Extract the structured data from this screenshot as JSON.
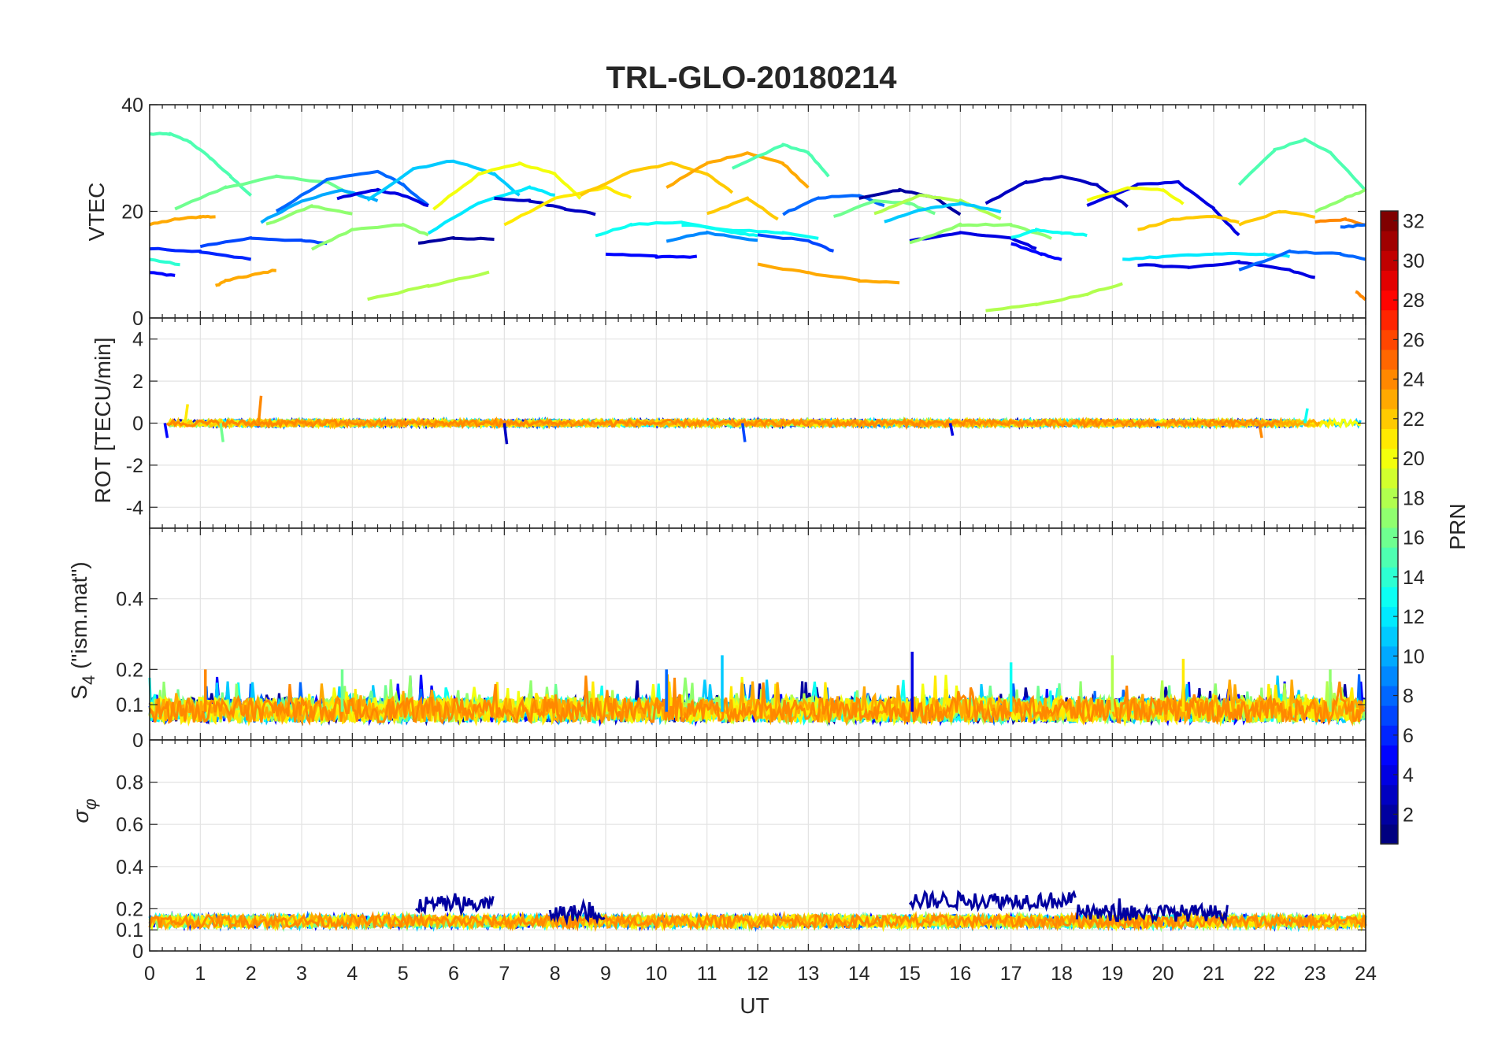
{
  "chart_data": {
    "type": "line",
    "title": "TRL-GLO-20180214",
    "xlabel": "UT",
    "xlim": [
      0,
      24
    ],
    "x_ticks": [
      0,
      1,
      2,
      3,
      4,
      5,
      6,
      7,
      8,
      9,
      10,
      11,
      12,
      13,
      14,
      15,
      16,
      17,
      18,
      19,
      20,
      21,
      22,
      23,
      24
    ],
    "grid": true,
    "panels": [
      {
        "id": "vtec",
        "ylabel": "VTEC",
        "ylim": [
          0,
          40
        ],
        "y_ticks": [
          0,
          20,
          40
        ],
        "y_tick_labels": [
          "0",
          "20",
          "40"
        ],
        "tracks": [
          {
            "prn": 15,
            "x": [
              0.0,
              0.4,
              0.8,
              1.2,
              1.6,
              2.0
            ],
            "y": [
              34.5,
              34.5,
              33.0,
              30.0,
              26.5,
              23.0
            ]
          },
          {
            "prn": 23,
            "x": [
              0.0,
              0.5,
              1.0,
              1.3
            ],
            "y": [
              17.5,
              18.5,
              19.0,
              19.0
            ]
          },
          {
            "prn": 6,
            "x": [
              0.0,
              1.0,
              2.0
            ],
            "y": [
              13.0,
              12.5,
              11.0
            ]
          },
          {
            "prn": 5,
            "x": [
              0.0,
              0.5
            ],
            "y": [
              8.5,
              8.0
            ]
          },
          {
            "prn": 14,
            "x": [
              0.0,
              0.6
            ],
            "y": [
              11.0,
              10.0
            ]
          },
          {
            "prn": 23,
            "x": [
              1.3,
              1.5,
              2.0,
              2.5
            ],
            "y": [
              6.0,
              7.0,
              8.0,
              9.0
            ]
          },
          {
            "prn": 16,
            "x": [
              0.5,
              1.5,
              2.5,
              3.5,
              4.0
            ],
            "y": [
              20.5,
              24.5,
              26.5,
              25.5,
              23.0
            ]
          },
          {
            "prn": 7,
            "x": [
              1.0,
              2.0,
              3.0,
              3.5
            ],
            "y": [
              13.5,
              15.0,
              14.5,
              14.0
            ]
          },
          {
            "prn": 10,
            "x": [
              2.2,
              3.0,
              3.8,
              4.5
            ],
            "y": [
              18.0,
              22.0,
              24.0,
              22.0
            ]
          },
          {
            "prn": 17,
            "x": [
              2.3,
              3.2,
              4.0
            ],
            "y": [
              17.5,
              21.0,
              19.5
            ]
          },
          {
            "prn": 8,
            "x": [
              2.5,
              3.5,
              4.5,
              5.0,
              5.5
            ],
            "y": [
              20.0,
              26.0,
              27.5,
              25.0,
              21.0
            ]
          },
          {
            "prn": 17,
            "x": [
              3.2,
              4.0,
              5.0,
              5.5
            ],
            "y": [
              13.0,
              16.5,
              17.5,
              15.5
            ]
          },
          {
            "prn": 4,
            "x": [
              3.7,
              4.5,
              5.0,
              5.5
            ],
            "y": [
              22.5,
              24.0,
              23.0,
              21.0
            ]
          },
          {
            "prn": 11,
            "x": [
              4.3,
              5.2,
              6.0,
              6.8,
              7.3
            ],
            "y": [
              22.0,
              28.0,
              29.5,
              27.0,
              23.0
            ]
          },
          {
            "prn": 18,
            "x": [
              4.3,
              5.5,
              6.7
            ],
            "y": [
              3.5,
              6.0,
              8.5
            ]
          },
          {
            "prn": 2,
            "x": [
              5.3,
              6.0,
              6.8
            ],
            "y": [
              14.0,
              15.0,
              14.8
            ]
          },
          {
            "prn": 12,
            "x": [
              5.5,
              6.5,
              7.5,
              8.0
            ],
            "y": [
              16.0,
              21.5,
              24.5,
              23.0
            ]
          },
          {
            "prn": 20,
            "x": [
              5.6,
              6.5,
              7.3,
              8.0,
              8.5
            ],
            "y": [
              20.5,
              27.0,
              29.0,
              27.0,
              22.5
            ]
          },
          {
            "prn": 3,
            "x": [
              6.8,
              7.5,
              8.2,
              8.8
            ],
            "y": [
              22.5,
              22.0,
              20.5,
              19.5
            ]
          },
          {
            "prn": 21,
            "x": [
              7.0,
              8.0,
              9.0,
              9.5
            ],
            "y": [
              17.5,
              22.5,
              24.5,
              22.5
            ]
          },
          {
            "prn": 22,
            "x": [
              8.5,
              9.5,
              10.3,
              11.0,
              11.5
            ],
            "y": [
              23.0,
              27.5,
              29.0,
              27.0,
              23.5
            ]
          },
          {
            "prn": 5,
            "x": [
              9.0,
              10.0,
              10.8
            ],
            "y": [
              12.0,
              11.5,
              11.5
            ]
          },
          {
            "prn": 13,
            "x": [
              8.8,
              9.5,
              10.5,
              11.5,
              12.0
            ],
            "y": [
              15.5,
              17.5,
              18.0,
              16.0,
              15.5
            ]
          },
          {
            "prn": 23,
            "x": [
              10.2,
              11.0,
              11.8,
              12.5,
              13.0
            ],
            "y": [
              24.5,
              29.0,
              31.0,
              29.0,
              24.5
            ]
          },
          {
            "prn": 9,
            "x": [
              10.2,
              11.0,
              12.0
            ],
            "y": [
              14.5,
              16.0,
              14.5
            ]
          },
          {
            "prn": 22,
            "x": [
              11.0,
              11.8,
              12.4
            ],
            "y": [
              19.5,
              22.5,
              18.5
            ]
          },
          {
            "prn": 15,
            "x": [
              11.5,
              12.5,
              13.0,
              13.4
            ],
            "y": [
              28.0,
              32.5,
              31.0,
              26.5
            ]
          },
          {
            "prn": 13,
            "x": [
              10.5,
              11.5,
              12.5,
              13.2
            ],
            "y": [
              17.5,
              16.5,
              16.0,
              15.0
            ]
          },
          {
            "prn": 23,
            "x": [
              12.0,
              13.0,
              14.0,
              14.8
            ],
            "y": [
              10.0,
              8.5,
              7.0,
              6.5
            ]
          },
          {
            "prn": 8,
            "x": [
              12.5,
              13.2,
              14.0,
              14.5
            ],
            "y": [
              19.5,
              22.5,
              23.0,
              21.0
            ]
          },
          {
            "prn": 7,
            "x": [
              12.0,
              13.0,
              13.5
            ],
            "y": [
              15.5,
              14.5,
              12.5
            ]
          },
          {
            "prn": 16,
            "x": [
              13.5,
              14.3,
              15.0,
              15.5
            ],
            "y": [
              19.0,
              22.0,
              21.5,
              19.5
            ]
          },
          {
            "prn": 2,
            "x": [
              14.0,
              14.8,
              15.5,
              16.0
            ],
            "y": [
              22.5,
              24.0,
              22.5,
              19.5
            ]
          },
          {
            "prn": 18,
            "x": [
              14.3,
              15.2,
              16.0,
              16.8
            ],
            "y": [
              19.5,
              23.0,
              22.0,
              18.5
            ]
          },
          {
            "prn": 11,
            "x": [
              14.5,
              15.3,
              16.0,
              16.8
            ],
            "y": [
              18.0,
              20.5,
              21.5,
              20.0
            ]
          },
          {
            "prn": 4,
            "x": [
              15.0,
              16.0,
              17.0,
              17.5
            ],
            "y": [
              14.5,
              16.0,
              15.0,
              13.0
            ]
          },
          {
            "prn": 17,
            "x": [
              15.0,
              16.0,
              17.0,
              17.8
            ],
            "y": [
              14.0,
              17.5,
              17.5,
              15.0
            ]
          },
          {
            "prn": 3,
            "x": [
              16.5,
              17.3,
              18.0,
              18.7,
              19.3
            ],
            "y": [
              21.5,
              25.5,
              26.5,
              25.0,
              21.0
            ]
          },
          {
            "prn": 18,
            "x": [
              16.5,
              17.5,
              18.5,
              19.2
            ],
            "y": [
              1.5,
              2.5,
              4.5,
              6.5
            ]
          },
          {
            "prn": 13,
            "x": [
              17.0,
              17.5,
              18.0,
              18.5
            ],
            "y": [
              15.0,
              16.5,
              16.0,
              15.5
            ]
          },
          {
            "prn": 5,
            "x": [
              17.0,
              17.6,
              18.0
            ],
            "y": [
              14.0,
              12.0,
              11.0
            ]
          },
          {
            "prn": 4,
            "x": [
              18.5,
              19.5,
              20.3,
              21.0,
              21.5
            ],
            "y": [
              21.0,
              25.0,
              25.5,
              20.5,
              15.5
            ]
          },
          {
            "prn": 20,
            "x": [
              18.5,
              19.3,
              20.0,
              20.4
            ],
            "y": [
              22.0,
              24.5,
              24.0,
              21.5
            ]
          },
          {
            "prn": 22,
            "x": [
              19.5,
              20.2,
              21.0,
              21.5
            ],
            "y": [
              16.5,
              18.5,
              19.0,
              18.0
            ]
          },
          {
            "prn": 12,
            "x": [
              19.2,
              20.0,
              21.0,
              22.0,
              22.5
            ],
            "y": [
              11.0,
              11.5,
              12.0,
              12.0,
              11.5
            ]
          },
          {
            "prn": 4,
            "x": [
              19.5,
              20.5,
              21.5,
              22.5,
              23.0
            ],
            "y": [
              10.0,
              9.5,
              10.5,
              9.0,
              7.5
            ]
          },
          {
            "prn": 8,
            "x": [
              21.5,
              22.5,
              23.5,
              24.0
            ],
            "y": [
              9.0,
              12.5,
              12.0,
              11.0
            ]
          },
          {
            "prn": 15,
            "x": [
              21.5,
              22.2,
              22.8,
              23.3,
              24.0
            ],
            "y": [
              25.0,
              31.5,
              33.5,
              31.0,
              24.0
            ]
          },
          {
            "prn": 22,
            "x": [
              21.5,
              22.3,
              23.0
            ],
            "y": [
              17.5,
              20.0,
              19.0
            ]
          },
          {
            "prn": 24,
            "x": [
              23.0,
              23.6,
              24.0
            ],
            "y": [
              18.0,
              18.5,
              17.5
            ]
          },
          {
            "prn": 8,
            "x": [
              23.5,
              24.0
            ],
            "y": [
              17.0,
              17.5
            ]
          },
          {
            "prn": 17,
            "x": [
              23.0,
              23.6,
              24.0
            ],
            "y": [
              20.0,
              22.5,
              24.0
            ]
          },
          {
            "prn": 24,
            "x": [
              23.8,
              24.0
            ],
            "y": [
              5.0,
              3.5
            ]
          }
        ]
      },
      {
        "id": "rot",
        "ylabel": "ROT [TECU/min]",
        "ylim": [
          -5,
          5
        ],
        "y_ticks": [
          -4,
          -2,
          0,
          2,
          4
        ],
        "y_tick_labels": [
          "-4",
          "-2",
          "0",
          "2",
          "4"
        ],
        "baseline": 0,
        "noise_level": 0.15,
        "spikes": [
          {
            "prn": 21,
            "x": 0.7,
            "y": 0.9
          },
          {
            "prn": 24,
            "x": 2.15,
            "y": 1.3
          },
          {
            "prn": 16,
            "x": 1.4,
            "y": -0.9
          },
          {
            "prn": 5,
            "x": 0.3,
            "y": -0.7
          },
          {
            "prn": 3,
            "x": 7.0,
            "y": -1.0
          },
          {
            "prn": 7,
            "x": 11.7,
            "y": -0.9
          },
          {
            "prn": 13,
            "x": 22.8,
            "y": 0.7
          },
          {
            "prn": 24,
            "x": 21.9,
            "y": -0.7
          },
          {
            "prn": 4,
            "x": 15.8,
            "y": -0.6
          }
        ]
      },
      {
        "id": "s4",
        "ylabel": "S4 (\"ism.mat\")",
        "ylim": [
          0,
          0.6
        ],
        "y_ticks": [
          0,
          0.1,
          0.2,
          0.4
        ],
        "y_tick_labels": [
          "0",
          "0.1",
          "0.2",
          "0.4"
        ],
        "baseline_range": [
          0.05,
          0.12
        ],
        "spikes": [
          {
            "prn": 4,
            "x": 15.05,
            "y": 0.25
          },
          {
            "prn": 11,
            "x": 11.3,
            "y": 0.24
          },
          {
            "prn": 18,
            "x": 19.0,
            "y": 0.24
          },
          {
            "prn": 21,
            "x": 20.4,
            "y": 0.23
          },
          {
            "prn": 13,
            "x": 17.0,
            "y": 0.22
          },
          {
            "prn": 24,
            "x": 1.1,
            "y": 0.2
          },
          {
            "prn": 16,
            "x": 3.8,
            "y": 0.2
          },
          {
            "prn": 8,
            "x": 10.2,
            "y": 0.2
          },
          {
            "prn": 17,
            "x": 23.3,
            "y": 0.2
          }
        ]
      },
      {
        "id": "sigma_phi",
        "ylabel": "σφ",
        "ylim": [
          0,
          1
        ],
        "y_ticks": [
          0,
          0.1,
          0.2,
          0.4,
          0.6,
          0.8
        ],
        "y_tick_labels": [
          "0",
          "0.1",
          "0.2",
          "0.4",
          "0.6",
          "0.8"
        ],
        "baseline_range": [
          0.11,
          0.17
        ],
        "elevated_segments": [
          {
            "prn": 2,
            "x": [
              5.25,
              6.8
            ],
            "y": 0.22
          },
          {
            "prn": 2,
            "x": [
              7.9,
              9.0
            ],
            "y": 0.18
          },
          {
            "prn": 2,
            "x": [
              15.0,
              18.3
            ],
            "y": 0.24
          },
          {
            "prn": 2,
            "x": [
              18.3,
              21.3
            ],
            "y": 0.18
          }
        ]
      }
    ],
    "colorbar": {
      "label": "PRN",
      "range": [
        1,
        32
      ],
      "ticks": [
        2,
        4,
        6,
        8,
        10,
        12,
        14,
        16,
        18,
        20,
        22,
        24,
        26,
        28,
        30,
        32
      ],
      "colormap": "jet"
    }
  }
}
